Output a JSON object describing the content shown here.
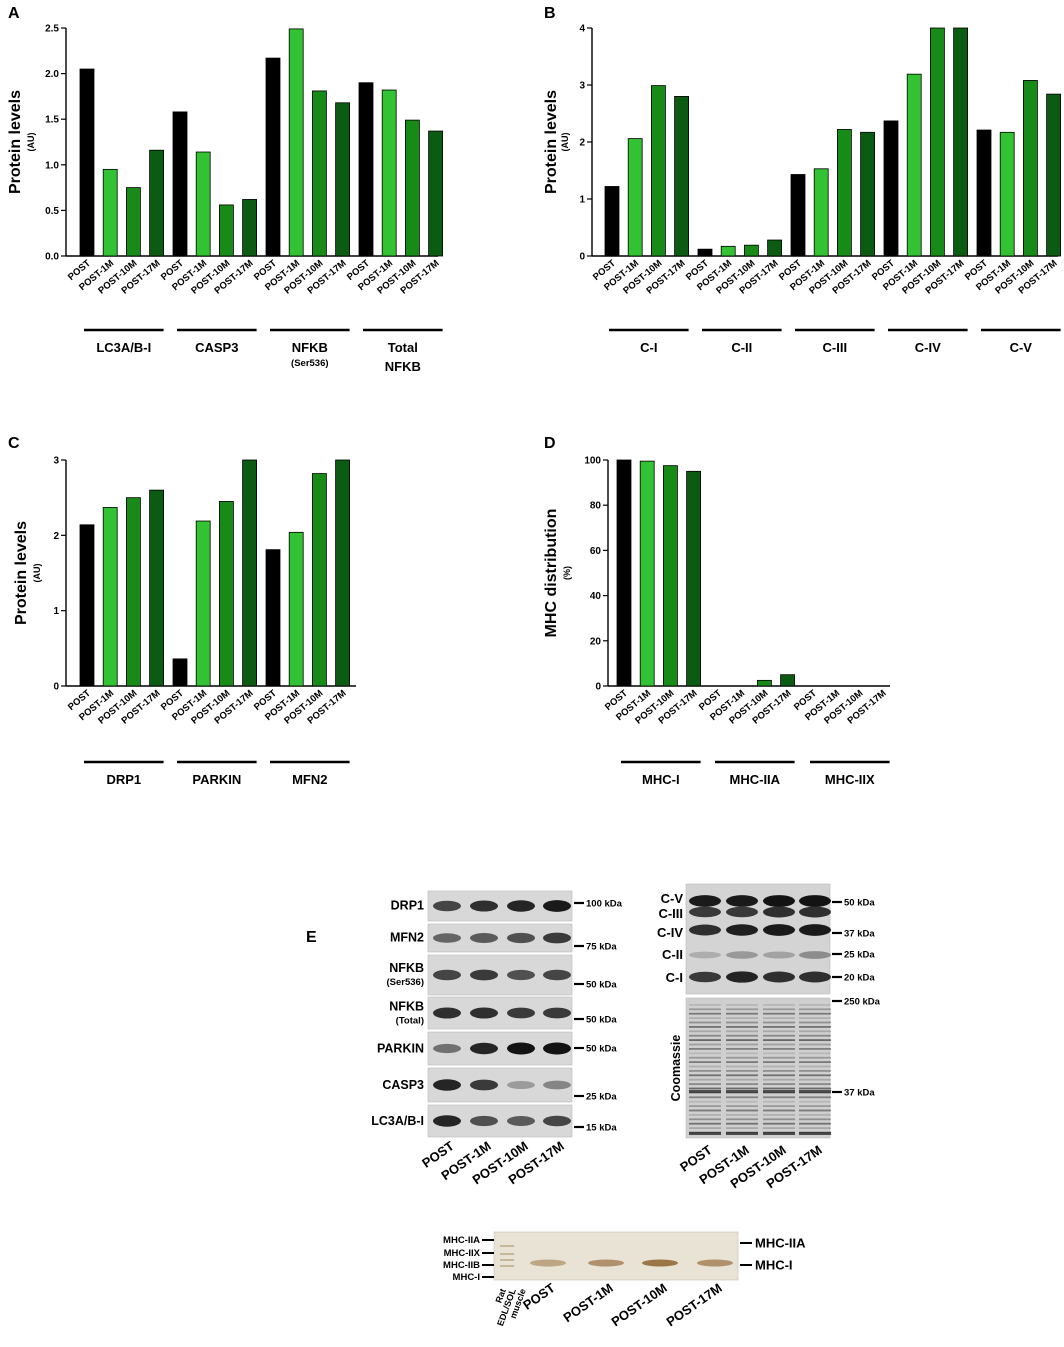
{
  "colors": {
    "POST": "#000000",
    "POST-1M": "#33c233",
    "POST-10M": "#178a17",
    "POST-17M": "#0b5c12",
    "blot_bg": "#dcdcdc",
    "band": "#1a1a1a"
  },
  "chart_data": [
    {
      "type": "bar",
      "panel": "A",
      "ylabel": "Protein levels",
      "ylabel_sub": "(AU)",
      "ylim": [
        0,
        2.5
      ],
      "yticks": [
        "0.0",
        "0.5",
        "1.0",
        "1.5",
        "2.0",
        "2.5"
      ],
      "ytick_values": [
        0,
        0.5,
        1,
        1.5,
        2,
        2.5
      ],
      "bar_labels": [
        "POST",
        "POST-1M",
        "POST-10M",
        "POST-17M"
      ],
      "groups": [
        {
          "label": "LC3A/B-I",
          "sub": "",
          "values": [
            2.05,
            0.95,
            0.75,
            1.16
          ]
        },
        {
          "label": "CASP3",
          "sub": "",
          "values": [
            1.58,
            1.14,
            0.56,
            0.62
          ]
        },
        {
          "label": "NFKB",
          "sub": "(Ser536)",
          "values": [
            2.17,
            2.49,
            1.81,
            1.68
          ]
        },
        {
          "label": "Total",
          "sub": "NFKB",
          "values": [
            1.9,
            1.82,
            1.49,
            1.37
          ]
        }
      ]
    },
    {
      "type": "bar",
      "panel": "B",
      "ylabel": "Protein levels",
      "ylabel_sub": "(AU)",
      "ylim": [
        0,
        4
      ],
      "yticks": [
        "0",
        "1",
        "2",
        "3",
        "4"
      ],
      "ytick_values": [
        0,
        1,
        2,
        3,
        4
      ],
      "bar_labels": [
        "POST",
        "POST-1M",
        "POST-10M",
        "POST-17M"
      ],
      "groups": [
        {
          "label": "C-I",
          "sub": "",
          "values": [
            1.22,
            2.06,
            2.99,
            2.8
          ]
        },
        {
          "label": "C-II",
          "sub": "",
          "values": [
            0.12,
            0.17,
            0.19,
            0.28
          ]
        },
        {
          "label": "C-III",
          "sub": "",
          "values": [
            1.43,
            1.53,
            2.22,
            2.17
          ]
        },
        {
          "label": "C-IV",
          "sub": "",
          "values": [
            2.37,
            3.19,
            4.0,
            4.0
          ]
        },
        {
          "label": "C-V",
          "sub": "",
          "values": [
            2.21,
            2.17,
            3.08,
            2.84
          ]
        }
      ]
    },
    {
      "type": "bar",
      "panel": "C",
      "ylabel": "Protein levels",
      "ylabel_sub": "(AU)",
      "ylim": [
        0,
        3
      ],
      "yticks": [
        "0",
        "1",
        "2",
        "3"
      ],
      "ytick_values": [
        0,
        1,
        2,
        3
      ],
      "bar_labels": [
        "POST",
        "POST-1M",
        "POST-10M",
        "POST-17M"
      ],
      "groups": [
        {
          "label": "DRP1",
          "sub": "",
          "values": [
            2.14,
            2.37,
            2.5,
            2.6
          ]
        },
        {
          "label": "PARKIN",
          "sub": "",
          "values": [
            0.36,
            2.19,
            2.45,
            3.0
          ]
        },
        {
          "label": "MFN2",
          "sub": "",
          "values": [
            1.81,
            2.04,
            2.82,
            3.0
          ]
        }
      ]
    },
    {
      "type": "bar",
      "panel": "D",
      "ylabel": "MHC distribution",
      "ylabel_sub": "(%)",
      "ylim": [
        0,
        100
      ],
      "yticks": [
        "0",
        "20",
        "40",
        "60",
        "80",
        "100"
      ],
      "ytick_values": [
        0,
        20,
        40,
        60,
        80,
        100
      ],
      "bar_labels": [
        "POST",
        "POST-1M",
        "POST-10M",
        "POST-17M"
      ],
      "groups": [
        {
          "label": "MHC-I",
          "sub": "",
          "values": [
            100,
            99.5,
            97.5,
            95
          ]
        },
        {
          "label": "MHC-IIA",
          "sub": "",
          "values": [
            0,
            0,
            2.5,
            5
          ]
        },
        {
          "label": "MHC-IIX",
          "sub": "",
          "values": [
            0,
            0,
            0,
            0
          ]
        }
      ]
    }
  ],
  "panel_e": {
    "letter": "E",
    "left_blot": {
      "rows": [
        {
          "label": "DRP1",
          "sub": "",
          "marker": "100 kDa",
          "intensity": [
            0.75,
            0.85,
            0.9,
            0.95
          ]
        },
        {
          "label": "MFN2",
          "sub": "",
          "marker": "75 kDa",
          "intensity": [
            0.6,
            0.65,
            0.7,
            0.8
          ]
        },
        {
          "label": "NFKB",
          "sub": "(Ser536)",
          "marker": "50 kDa",
          "intensity": [
            0.75,
            0.8,
            0.7,
            0.75
          ]
        },
        {
          "label": "NFKB",
          "sub": "(Total)",
          "marker": "50 kDa",
          "intensity": [
            0.85,
            0.85,
            0.8,
            0.8
          ]
        },
        {
          "label": "PARKIN",
          "sub": "",
          "marker": "50 kDa",
          "intensity": [
            0.55,
            0.9,
            0.98,
            0.98
          ]
        },
        {
          "label": "CASP3",
          "sub": "",
          "marker": "25 kDa",
          "intensity": [
            0.9,
            0.8,
            0.35,
            0.45
          ]
        },
        {
          "label": "LC3A/B-I",
          "sub": "",
          "marker": "15 kDa",
          "intensity": [
            0.9,
            0.7,
            0.65,
            0.75
          ]
        }
      ],
      "lanes": [
        "POST",
        "POST-1M",
        "POST-10M",
        "POST-17M"
      ]
    },
    "right_blot": {
      "labels": [
        "C-V",
        "C-III",
        "C-IV",
        "C-II",
        "C-I"
      ],
      "markers": [
        "50 kDa",
        "37 kDa",
        "25 kDa",
        "20 kDa"
      ],
      "coomassie_label": "Coomassie",
      "coomassie_markers": [
        "250 kDa",
        "37 kDa"
      ],
      "lanes": [
        "POST",
        "POST-1M",
        "POST-10M",
        "POST-17M"
      ]
    },
    "mhc_gel": {
      "left_labels": [
        "MHC-IIA",
        "MHC-IIX",
        "MHC-IIB",
        "MHC-I"
      ],
      "right_labels": [
        "MHC-IIA",
        "MHC-I"
      ],
      "lanes": [
        "Rat EDL/SOL muscle",
        "POST",
        "POST-1M",
        "POST-10M",
        "POST-17M"
      ],
      "rat_label_lines": [
        "Rat",
        "EDL/SOL",
        "muscle"
      ]
    }
  }
}
